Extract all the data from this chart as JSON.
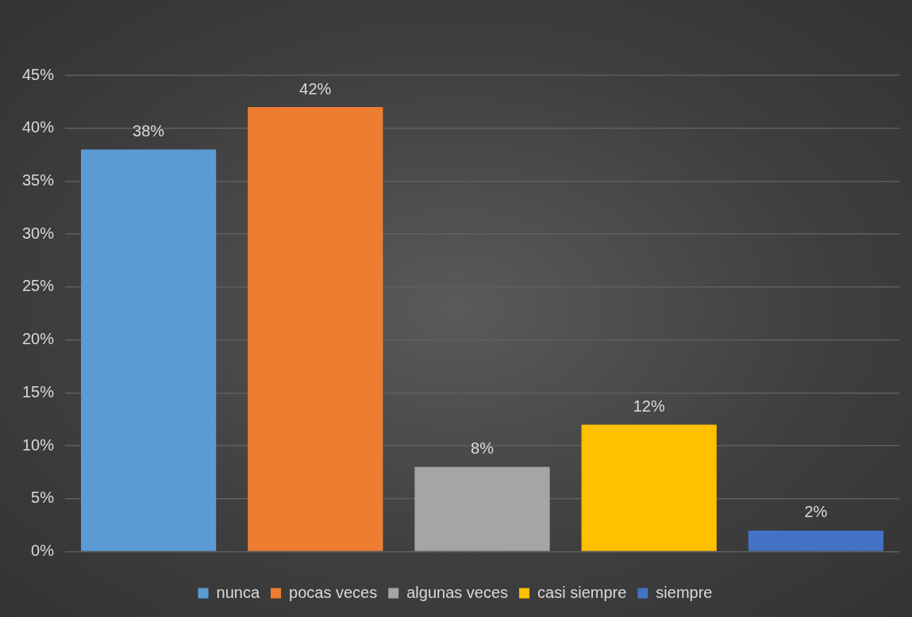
{
  "chart_data": {
    "type": "bar",
    "categories": [
      null,
      null,
      null,
      null,
      null
    ],
    "series": [
      {
        "name": "nunca",
        "color": "#5b9bd5",
        "values": [
          38,
          null,
          null,
          null,
          null
        ],
        "value_labels": [
          "38%",
          null,
          null,
          null,
          null
        ]
      },
      {
        "name": "pocas veces",
        "color": "#ed7d31",
        "values": [
          null,
          42,
          null,
          null,
          null
        ],
        "value_labels": [
          null,
          "42%",
          null,
          null,
          null
        ]
      },
      {
        "name": "algunas veces",
        "color": "#a5a5a5",
        "values": [
          null,
          null,
          8,
          null,
          null
        ],
        "value_labels": [
          null,
          null,
          "8%",
          null,
          null
        ]
      },
      {
        "name": "casi siempre",
        "color": "#ffc000",
        "values": [
          null,
          null,
          null,
          12,
          null
        ],
        "value_labels": [
          null,
          null,
          null,
          "12%",
          null
        ]
      },
      {
        "name": "siempre",
        "color": "#4472c4",
        "values": [
          null,
          null,
          null,
          null,
          2
        ],
        "value_labels": [
          null,
          null,
          null,
          null,
          "2%"
        ]
      }
    ],
    "ylim": [
      0,
      45
    ],
    "yticks": [
      {
        "value": 0,
        "label": "0%"
      },
      {
        "value": 5,
        "label": "5%"
      },
      {
        "value": 10,
        "label": "10%"
      },
      {
        "value": 15,
        "label": "15%"
      },
      {
        "value": 20,
        "label": "20%"
      },
      {
        "value": 25,
        "label": "25%"
      },
      {
        "value": 30,
        "label": "30%"
      },
      {
        "value": 35,
        "label": "35%"
      },
      {
        "value": 40,
        "label": "40%"
      },
      {
        "value": 45,
        "label": "45%"
      }
    ],
    "grid": "y",
    "legend": "bottom"
  }
}
